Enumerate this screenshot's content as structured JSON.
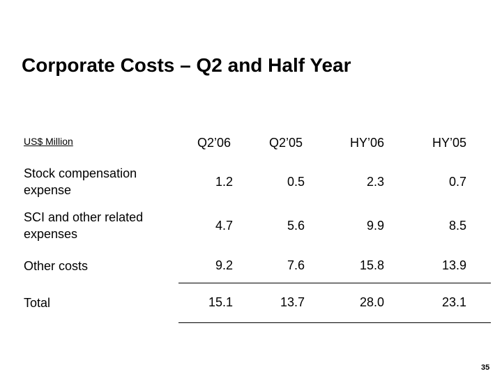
{
  "slide": {
    "title": "Corporate Costs – Q2 and Half Year",
    "units": "US$ Million",
    "page_number": "35"
  },
  "table": {
    "columns": [
      "Q2’06",
      "Q2’05",
      "HY’06",
      "HY’05"
    ],
    "rows": [
      {
        "label": "Stock compensation expense",
        "values": [
          "1.2",
          "0.5",
          "2.3",
          "0.7"
        ]
      },
      {
        "label": "SCI and other related expenses",
        "values": [
          "4.7",
          "5.6",
          "9.9",
          "8.5"
        ]
      },
      {
        "label": "Other costs",
        "values": [
          "9.2",
          "7.6",
          "15.8",
          "13.9"
        ]
      },
      {
        "label": "Total",
        "values": [
          "15.1",
          "13.7",
          "28.0",
          "23.1"
        ]
      }
    ]
  }
}
